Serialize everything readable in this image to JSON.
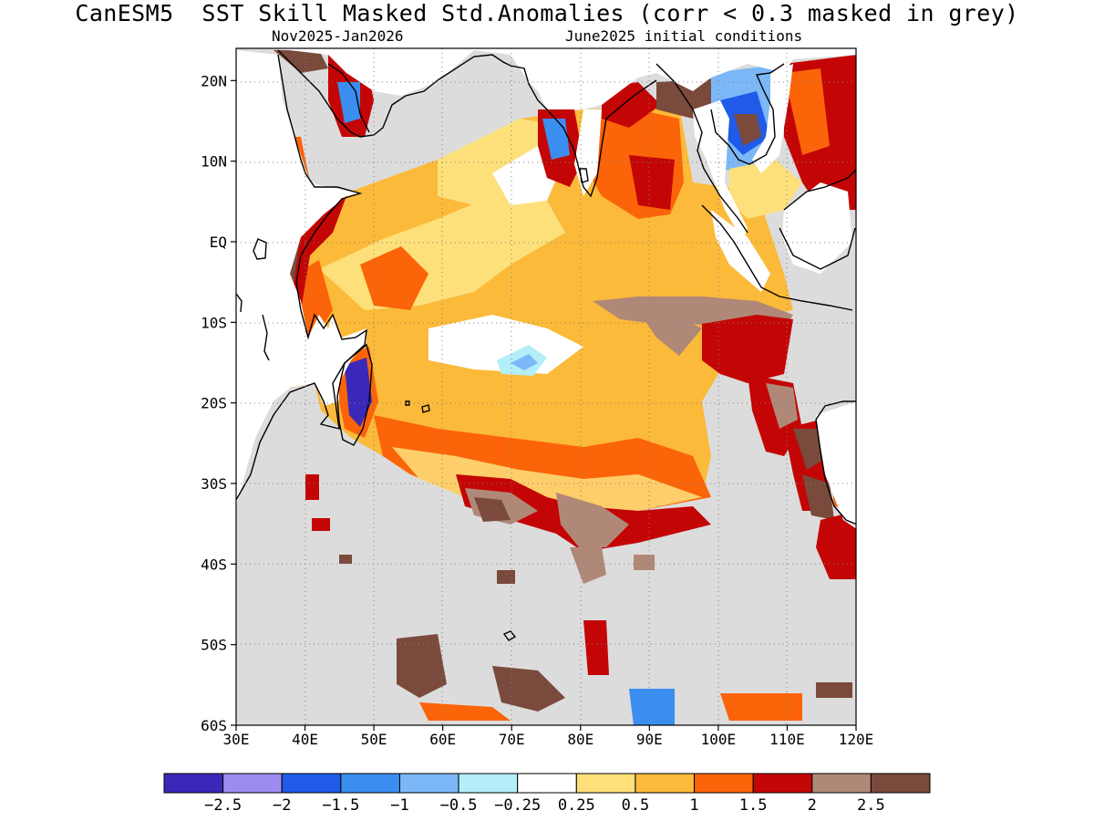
{
  "header": {
    "title": "CanESM5  SST Skill Masked Std.Anomalies (corr < 0.3 masked in grey)",
    "period": "Nov2025-Jan2026",
    "init": "June2025 initial conditions"
  },
  "map": {
    "projection": "lat-lon",
    "lon_range": [
      30,
      120
    ],
    "lat_range": [
      -60,
      24
    ],
    "lon_ticks": [
      "30E",
      "40E",
      "50E",
      "60E",
      "70E",
      "80E",
      "90E",
      "100E",
      "110E",
      "120E"
    ],
    "lat_ticks": [
      "20N",
      "10N",
      "EQ",
      "10S",
      "20S",
      "30S",
      "40S",
      "50S",
      "60S"
    ],
    "grid": "dotted",
    "mask_color": "#dcdcdc",
    "land_color": "#ffffff",
    "coastline_color": "#000000"
  },
  "colorbar": {
    "colors": [
      "#3a28b8",
      "#9c8cf2",
      "#1f5be8",
      "#3a8ef0",
      "#7cb8f7",
      "#b4eef8",
      "#ffffff",
      "#fde07a",
      "#fbba3a",
      "#fb6409",
      "#c40505",
      "#b08878",
      "#7a4a3c"
    ],
    "labels": [
      "−2.5",
      "−2",
      "−1.5",
      "−1",
      "−0.5",
      "−0.25",
      "0.25",
      "0.5",
      "1",
      "1.5",
      "2",
      "2.5"
    ]
  }
}
